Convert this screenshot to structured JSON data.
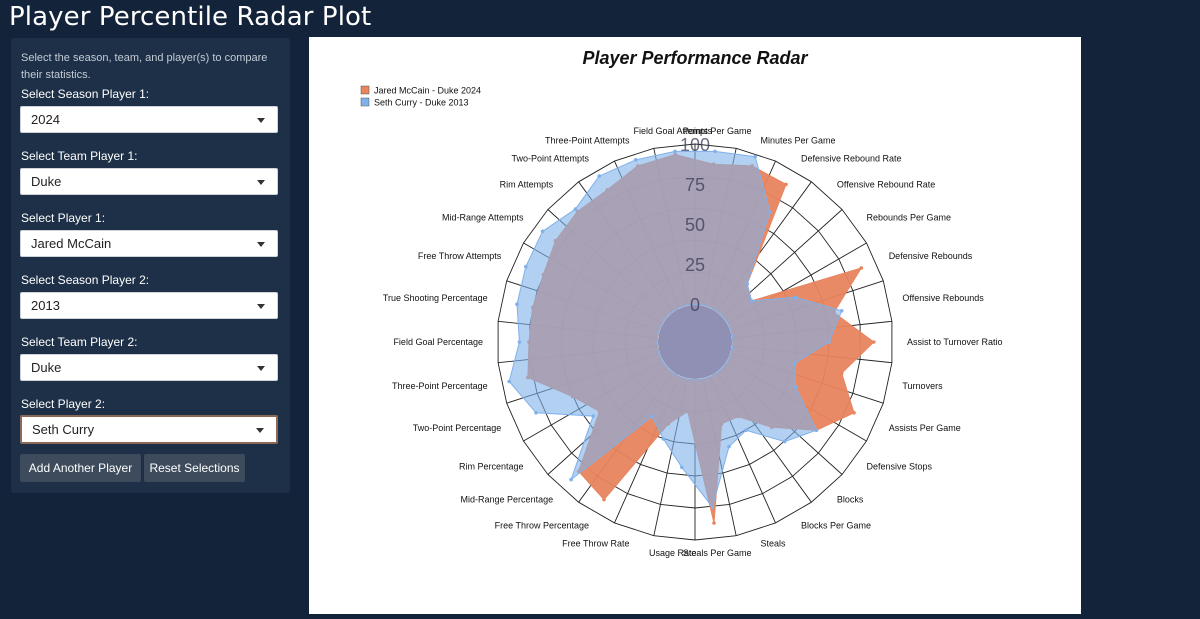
{
  "app": {
    "title": "Player Percentile Radar Plot"
  },
  "sidebar": {
    "description": "Select the season, team, and player(s) to compare their statistics.",
    "controls": [
      {
        "label": "Select Season Player 1:",
        "value": "2024"
      },
      {
        "label": "Select Team Player 1:",
        "value": "Duke"
      },
      {
        "label": "Select Player 1:",
        "value": "Jared McCain"
      },
      {
        "label": "Select Season Player 2:",
        "value": "2013"
      },
      {
        "label": "Select Team Player 2:",
        "value": "Duke"
      },
      {
        "label": "Select Player 2:",
        "value": "Seth Curry"
      }
    ],
    "add_button": "Add Another Player",
    "reset_button": "Reset Selections"
  },
  "chart_data": {
    "type": "radar",
    "title": "Player Performance Radar",
    "radial_range": [
      0,
      100
    ],
    "radial_ticks": [
      "0",
      "25",
      "50",
      "75",
      "100"
    ],
    "categories": [
      "Points Per Game",
      "Minutes Per Game",
      "Defensive Rebound Rate",
      "Offensive Rebound Rate",
      "Rebounds Per Game",
      "Defensive Rebounds",
      "Offensive Rebounds",
      "Assist to Turnover Ratio",
      "Turnovers",
      "Assists Per Game",
      "Defensive Stops",
      "Blocks",
      "Blocks Per Game",
      "Steals",
      "Steals Per Game",
      "Usage Rate",
      "Free Throw Rate",
      "Free Throw Percentage",
      "Mid-Range Percentage",
      "Rim Percentage",
      "Two-Point Percentage",
      "Three-Point Percentage",
      "Field Goal Percentage",
      "True Shooting Percentage",
      "Free Throw Attempts",
      "Mid-Range Attempts",
      "Rim Attempts",
      "Two-Point Attempts",
      "Three-Point Attempts",
      "Field Goal Attempts"
    ],
    "series": [
      {
        "name": "Jared McCain - Duke 2024",
        "color": "#e8845e",
        "values": [
          88,
          92,
          90,
          25,
          20,
          90,
          65,
          88,
          70,
          85,
          70,
          48,
          30,
          30,
          90,
          20,
          30,
          90,
          85,
          50,
          60,
          83,
          80,
          80,
          80,
          84,
          86,
          86,
          92,
          94
        ]
      },
      {
        "name": "Seth Curry - Duke 2013",
        "color": "#7fb1ea",
        "values": [
          96,
          98,
          70,
          25,
          20,
          45,
          70,
          60,
          40,
          45,
          70,
          60,
          40,
          45,
          80,
          55,
          40,
          30,
          92,
          55,
          85,
          95,
          86,
          90,
          92,
          94,
          88,
          96,
          96,
          96
        ]
      }
    ],
    "legend": "top-left",
    "grid": true
  }
}
